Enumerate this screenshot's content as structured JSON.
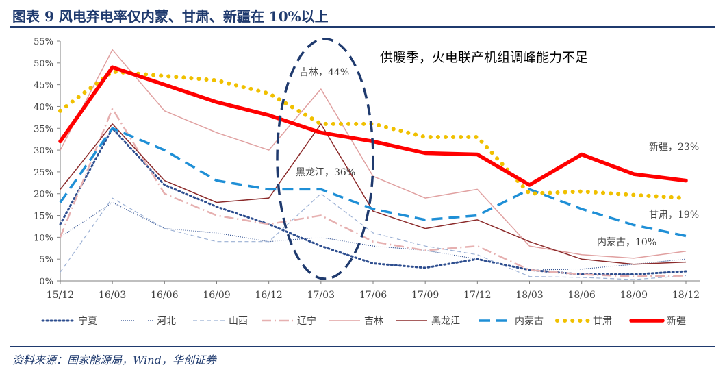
{
  "header": {
    "title": "图表 9   风电弃电率仅内蒙、甘肃、新疆在 10%以上"
  },
  "footer": {
    "source": "资料来源：国家能源局，Wind，华创证券"
  },
  "colors": {
    "frame": "#1f3a6e",
    "grid": "#d9d9d9",
    "axis_text": "#595959"
  },
  "chart_data": {
    "type": "line",
    "title": "",
    "xlabel": "",
    "ylabel": "",
    "categories": [
      "15/12",
      "16/03",
      "16/06",
      "16/09",
      "16/12",
      "17/03",
      "17/06",
      "17/09",
      "17/12",
      "18/03",
      "18/06",
      "18/09",
      "18/12"
    ],
    "ylim": [
      0,
      55
    ],
    "yticks": [
      "0%",
      "5%",
      "10%",
      "15%",
      "20%",
      "25%",
      "30%",
      "35%",
      "40%",
      "45%",
      "50%",
      "55%"
    ],
    "grid": false,
    "legend_position": "bottom",
    "series": [
      {
        "name": "宁夏",
        "color": "#2e4e8f",
        "style": "dot",
        "values": [
          13,
          35,
          22,
          17,
          13,
          8,
          4,
          3,
          5,
          2.5,
          1.5,
          1.5,
          2.2
        ]
      },
      {
        "name": "河北",
        "color": "#2e4e8f",
        "style": "thin-dot",
        "values": [
          10,
          18,
          12,
          11,
          9,
          10,
          8,
          7,
          5,
          2.5,
          2.7,
          3.8,
          5
        ]
      },
      {
        "name": "山西",
        "color": "#9bb0d4",
        "style": "dash",
        "values": [
          2,
          19,
          12,
          9,
          9,
          20,
          11,
          8,
          6,
          1,
          0.8,
          0.3,
          1.2
        ]
      },
      {
        "name": "辽宁",
        "color": "#e6b0b0",
        "style": "dashdot",
        "values": [
          10,
          39.5,
          20,
          15,
          13,
          15,
          9,
          7,
          8,
          2.5,
          1.5,
          1,
          1.2
        ]
      },
      {
        "name": "吉林",
        "color": "#e0a0a0",
        "style": "solid-thin",
        "values": [
          30,
          53,
          39,
          34,
          30,
          44,
          24,
          19,
          21,
          8,
          6,
          5.2,
          6.8
        ]
      },
      {
        "name": "黑龙江",
        "color": "#8b2a2a",
        "style": "solid-thin",
        "values": [
          21,
          36,
          23,
          18,
          19,
          36,
          16,
          12,
          14,
          9,
          5,
          3.8,
          4.3
        ]
      },
      {
        "name": "内蒙古",
        "color": "#1f8fd6",
        "style": "dash-thick",
        "values": [
          18,
          35,
          30,
          23,
          21,
          21,
          16.5,
          14,
          15,
          21,
          16.5,
          12.8,
          10.3
        ]
      },
      {
        "name": "甘肃",
        "color": "#f0c000",
        "style": "dot-thick",
        "values": [
          39,
          48,
          47,
          46,
          43,
          36,
          36,
          33,
          33,
          20,
          20.5,
          19.7,
          19
        ]
      },
      {
        "name": "新疆",
        "color": "#ff0000",
        "style": "solid-thick",
        "values": [
          32,
          49,
          45,
          41,
          38,
          34,
          32,
          29.3,
          29,
          22,
          29,
          24.5,
          23
        ]
      }
    ],
    "annotations": [
      {
        "text": "供暖季，火电联产机组调峰能力不足"
      },
      {
        "text": "吉林，44%"
      },
      {
        "text": "黑龙江，36%"
      },
      {
        "text": "新疆，23%"
      },
      {
        "text": "甘肃，19%"
      },
      {
        "text": "内蒙古，10%"
      }
    ]
  }
}
